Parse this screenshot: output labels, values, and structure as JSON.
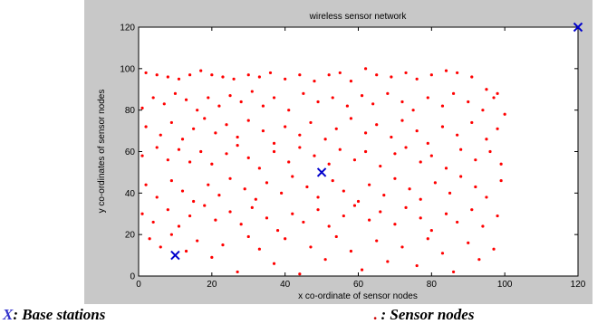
{
  "chart_data": {
    "type": "scatter",
    "title": "wireless sensor network",
    "xlabel": "x co-ordinate of sensor nodes",
    "ylabel": "y co-ordinates of sensor nodes",
    "xlim": [
      0,
      120
    ],
    "ylim": [
      0,
      120
    ],
    "xticks": [
      "0",
      "20",
      "40",
      "60",
      "80",
      "100",
      "120"
    ],
    "yticks": [
      "0",
      "20",
      "40",
      "60",
      "80",
      "100",
      "120"
    ],
    "grid": false,
    "colors": {
      "sensor": "#ff0000",
      "base": "#0000cc"
    },
    "series": [
      {
        "marker": "x",
        "color": "#0000cc",
        "points": [
          [
            10,
            10
          ],
          [
            50,
            50
          ],
          [
            120,
            120
          ]
        ]
      },
      {
        "marker": "dot",
        "color": "#ff0000",
        "points": [
          [
            2,
            98
          ],
          [
            5,
            97
          ],
          [
            8,
            96
          ],
          [
            11,
            95
          ],
          [
            14,
            97
          ],
          [
            17,
            99
          ],
          [
            20,
            97
          ],
          [
            23,
            96
          ],
          [
            26,
            95
          ],
          [
            30,
            97
          ],
          [
            33,
            96
          ],
          [
            36,
            98
          ],
          [
            40,
            95
          ],
          [
            44,
            97
          ],
          [
            48,
            94
          ],
          [
            52,
            97
          ],
          [
            55,
            98
          ],
          [
            58,
            94
          ],
          [
            62,
            100
          ],
          [
            65,
            97
          ],
          [
            69,
            96
          ],
          [
            73,
            98
          ],
          [
            76,
            95
          ],
          [
            80,
            97
          ],
          [
            84,
            99
          ],
          [
            87,
            98
          ],
          [
            91,
            96
          ],
          [
            95,
            90
          ],
          [
            98,
            88
          ],
          [
            1,
            81
          ],
          [
            4,
            86
          ],
          [
            7,
            83
          ],
          [
            10,
            88
          ],
          [
            13,
            85
          ],
          [
            16,
            80
          ],
          [
            19,
            86
          ],
          [
            22,
            82
          ],
          [
            25,
            87
          ],
          [
            28,
            84
          ],
          [
            31,
            89
          ],
          [
            34,
            82
          ],
          [
            37,
            86
          ],
          [
            41,
            80
          ],
          [
            45,
            88
          ],
          [
            49,
            84
          ],
          [
            53,
            86
          ],
          [
            57,
            82
          ],
          [
            61,
            87
          ],
          [
            64,
            83
          ],
          [
            68,
            88
          ],
          [
            72,
            84
          ],
          [
            75,
            80
          ],
          [
            79,
            86
          ],
          [
            83,
            82
          ],
          [
            86,
            88
          ],
          [
            90,
            84
          ],
          [
            94,
            80
          ],
          [
            97,
            86
          ],
          [
            100,
            78
          ],
          [
            2,
            72
          ],
          [
            6,
            68
          ],
          [
            9,
            74
          ],
          [
            12,
            66
          ],
          [
            15,
            71
          ],
          [
            18,
            76
          ],
          [
            21,
            69
          ],
          [
            24,
            73
          ],
          [
            27,
            67
          ],
          [
            30,
            75
          ],
          [
            34,
            70
          ],
          [
            37,
            64
          ],
          [
            40,
            72
          ],
          [
            44,
            68
          ],
          [
            47,
            74
          ],
          [
            51,
            66
          ],
          [
            54,
            71
          ],
          [
            58,
            76
          ],
          [
            62,
            69
          ],
          [
            65,
            73
          ],
          [
            69,
            67
          ],
          [
            72,
            75
          ],
          [
            76,
            70
          ],
          [
            79,
            64
          ],
          [
            83,
            72
          ],
          [
            87,
            68
          ],
          [
            91,
            74
          ],
          [
            95,
            66
          ],
          [
            98,
            71
          ],
          [
            1,
            58
          ],
          [
            5,
            62
          ],
          [
            8,
            56
          ],
          [
            11,
            61
          ],
          [
            14,
            55
          ],
          [
            17,
            60
          ],
          [
            20,
            54
          ],
          [
            24,
            59
          ],
          [
            27,
            63
          ],
          [
            30,
            57
          ],
          [
            33,
            52
          ],
          [
            37,
            60
          ],
          [
            41,
            55
          ],
          [
            44,
            62
          ],
          [
            48,
            58
          ],
          [
            52,
            54
          ],
          [
            55,
            61
          ],
          [
            59,
            56
          ],
          [
            62,
            60
          ],
          [
            66,
            53
          ],
          [
            70,
            59
          ],
          [
            73,
            62
          ],
          [
            77,
            55
          ],
          [
            80,
            58
          ],
          [
            84,
            52
          ],
          [
            88,
            61
          ],
          [
            92,
            56
          ],
          [
            96,
            60
          ],
          [
            99,
            54
          ],
          [
            2,
            44
          ],
          [
            5,
            38
          ],
          [
            9,
            46
          ],
          [
            12,
            41
          ],
          [
            15,
            36
          ],
          [
            19,
            44
          ],
          [
            22,
            39
          ],
          [
            25,
            47
          ],
          [
            29,
            42
          ],
          [
            32,
            37
          ],
          [
            35,
            45
          ],
          [
            39,
            40
          ],
          [
            42,
            48
          ],
          [
            46,
            43
          ],
          [
            49,
            38
          ],
          [
            53,
            46
          ],
          [
            56,
            41
          ],
          [
            60,
            36
          ],
          [
            63,
            44
          ],
          [
            67,
            39
          ],
          [
            70,
            47
          ],
          [
            74,
            42
          ],
          [
            77,
            37
          ],
          [
            81,
            45
          ],
          [
            85,
            40
          ],
          [
            88,
            48
          ],
          [
            92,
            43
          ],
          [
            95,
            38
          ],
          [
            99,
            46
          ],
          [
            1,
            30
          ],
          [
            4,
            26
          ],
          [
            8,
            32
          ],
          [
            11,
            24
          ],
          [
            14,
            29
          ],
          [
            18,
            34
          ],
          [
            21,
            27
          ],
          [
            25,
            31
          ],
          [
            28,
            25
          ],
          [
            31,
            33
          ],
          [
            35,
            28
          ],
          [
            38,
            22
          ],
          [
            42,
            30
          ],
          [
            45,
            26
          ],
          [
            49,
            32
          ],
          [
            52,
            24
          ],
          [
            56,
            29
          ],
          [
            59,
            34
          ],
          [
            63,
            27
          ],
          [
            66,
            31
          ],
          [
            70,
            25
          ],
          [
            73,
            33
          ],
          [
            77,
            28
          ],
          [
            80,
            22
          ],
          [
            84,
            30
          ],
          [
            87,
            26
          ],
          [
            91,
            32
          ],
          [
            94,
            24
          ],
          [
            98,
            29
          ],
          [
            3,
            18
          ],
          [
            6,
            14
          ],
          [
            9,
            20
          ],
          [
            13,
            12
          ],
          [
            16,
            17
          ],
          [
            20,
            9
          ],
          [
            23,
            15
          ],
          [
            27,
            2
          ],
          [
            30,
            19
          ],
          [
            33,
            13
          ],
          [
            37,
            6
          ],
          [
            40,
            18
          ],
          [
            44,
            1
          ],
          [
            47,
            14
          ],
          [
            51,
            8
          ],
          [
            54,
            19
          ],
          [
            58,
            12
          ],
          [
            61,
            3
          ],
          [
            65,
            17
          ],
          [
            68,
            7
          ],
          [
            72,
            14
          ],
          [
            76,
            5
          ],
          [
            79,
            18
          ],
          [
            83,
            11
          ],
          [
            86,
            2
          ],
          [
            90,
            16
          ],
          [
            93,
            8
          ],
          [
            97,
            13
          ]
        ]
      }
    ]
  },
  "legend": {
    "base_symbol": "X",
    "base_label": ": Base stations",
    "sensor_symbol": ".",
    "sensor_label": " : Sensor nodes"
  }
}
